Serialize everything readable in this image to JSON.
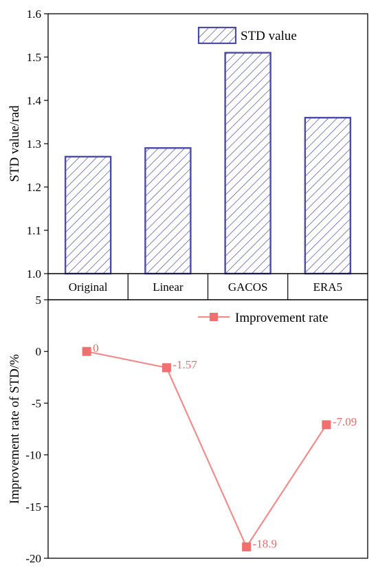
{
  "chart_data": [
    {
      "type": "bar",
      "categories": [
        "Original",
        "Linear",
        "GACOS",
        "ERA5"
      ],
      "series": [
        {
          "name": "STD value",
          "values": [
            1.27,
            1.29,
            1.51,
            1.36
          ]
        }
      ],
      "ylabel": "STD value/rad",
      "ylim": [
        1.0,
        1.6
      ],
      "yticks": [
        "1.0",
        "1.1",
        "1.2",
        "1.3",
        "1.4",
        "1.5",
        "1.6"
      ],
      "legend_position": "top-right",
      "grid": false,
      "bar_fill": "hatched",
      "colors": {
        "bar_edge": "#4a4aa8",
        "hatch": "#4a4aa8"
      }
    },
    {
      "type": "line",
      "categories": [
        "Original",
        "Linear",
        "GACOS",
        "ERA5"
      ],
      "series": [
        {
          "name": "Improvement rate",
          "values": [
            0,
            -1.57,
            -18.9,
            -7.09
          ]
        }
      ],
      "data_labels": [
        "0",
        "-1.57",
        "-18.9",
        "-7.09"
      ],
      "ylabel": "Improvement rate of STD/%",
      "ylim": [
        -20,
        5
      ],
      "yticks": [
        "5",
        "0",
        "-5",
        "-10",
        "-15",
        "-20"
      ],
      "legend_position": "top-right",
      "grid": false,
      "marker": "square",
      "colors": {
        "line": "#f28b8b",
        "marker": "#f07070",
        "label": "#e86a6a"
      }
    }
  ]
}
